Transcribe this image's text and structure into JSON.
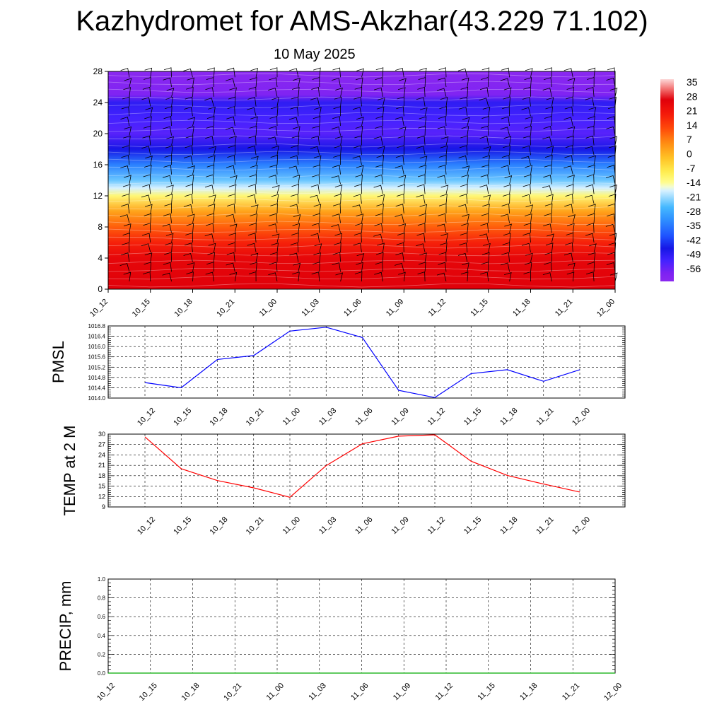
{
  "title": "Kazhydromet for AMS-Akzhar(43.229 71.102)",
  "subtitle": "10 May 2025",
  "chart_data": [
    {
      "type": "heatmap",
      "description_label": "",
      "x_ticks": [
        "10_12",
        "10_15",
        "10_18",
        "10_21",
        "11_00",
        "11_03",
        "11_06",
        "11_09",
        "11_12",
        "11_15",
        "11_18",
        "11_21",
        "12_00"
      ],
      "y_ticks": [
        0,
        4,
        8,
        12,
        16,
        20,
        24,
        28
      ],
      "ylim": [
        0,
        28
      ],
      "colorbar_labels": [
        35,
        28,
        21,
        14,
        7,
        0,
        -7,
        -14,
        -21,
        -28,
        -35,
        -42,
        -49,
        -56
      ],
      "colorbar_range": [
        -60,
        38
      ],
      "temperature_by_height": [
        {
          "h": 0,
          "t": 28
        },
        {
          "h": 2,
          "t": 27
        },
        {
          "h": 4,
          "t": 26
        },
        {
          "h": 6,
          "t": 20
        },
        {
          "h": 8,
          "t": 12
        },
        {
          "h": 10,
          "t": 4
        },
        {
          "h": 12,
          "t": -10
        },
        {
          "h": 13,
          "t": -16
        },
        {
          "h": 14,
          "t": -22
        },
        {
          "h": 16,
          "t": -32
        },
        {
          "h": 18,
          "t": -44
        },
        {
          "h": 20,
          "t": -52
        },
        {
          "h": 22,
          "t": -50
        },
        {
          "h": 24,
          "t": -47
        },
        {
          "h": 25,
          "t": -57
        },
        {
          "h": 28,
          "t": -60
        }
      ],
      "wind_barbs": true
    },
    {
      "type": "line",
      "ylabel": "PMSL",
      "categories": [
        "10_12",
        "10_15",
        "10_18",
        "10_21",
        "11_00",
        "11_03",
        "11_06",
        "11_09",
        "11_12",
        "11_15",
        "11_18",
        "11_21",
        "12_00"
      ],
      "ylim": [
        1014.0,
        1016.8
      ],
      "y_ticks": [
        "1014.0",
        "1014.4",
        "1014.8",
        "1015.2",
        "1015.6",
        "1016.0",
        "1016.4",
        "1016.8"
      ],
      "series": [
        {
          "values": [
            1014.6,
            1014.4,
            1015.5,
            1015.65,
            1016.6,
            1016.75,
            1016.35,
            1014.3,
            1014.02,
            1014.95,
            1015.1,
            1014.65,
            1015.1
          ],
          "color": "#0000ff"
        }
      ]
    },
    {
      "type": "line",
      "ylabel": "TEMP at 2 M",
      "categories": [
        "10_12",
        "10_15",
        "10_18",
        "10_21",
        "11_00",
        "11_03",
        "11_06",
        "11_09",
        "11_12",
        "11_15",
        "11_18",
        "11_21",
        "12_00"
      ],
      "ylim": [
        9,
        30
      ],
      "y_ticks": [
        9,
        12,
        15,
        18,
        21,
        24,
        27,
        30
      ],
      "series": [
        {
          "values": [
            29.2,
            20.0,
            16.6,
            14.5,
            11.8,
            20.9,
            27.2,
            29.4,
            29.8,
            22.2,
            18.1,
            15.6,
            13.3
          ],
          "color": "#ff0000"
        }
      ]
    },
    {
      "type": "line",
      "ylabel": "PRECIP, mm",
      "categories": [
        "10_12",
        "10_15",
        "10_18",
        "10_21",
        "11_00",
        "11_03",
        "11_06",
        "11_09",
        "11_12",
        "11_15",
        "11_18",
        "11_21",
        "12_00"
      ],
      "ylim": [
        0,
        1.0
      ],
      "y_ticks": [
        "0.0",
        "0.2",
        "0.4",
        "0.6",
        "0.8",
        "1.0"
      ],
      "series": [
        {
          "values": [
            0,
            0,
            0,
            0,
            0,
            0,
            0,
            0,
            0,
            0,
            0,
            0,
            0
          ],
          "color": "#00aa00"
        }
      ]
    }
  ]
}
